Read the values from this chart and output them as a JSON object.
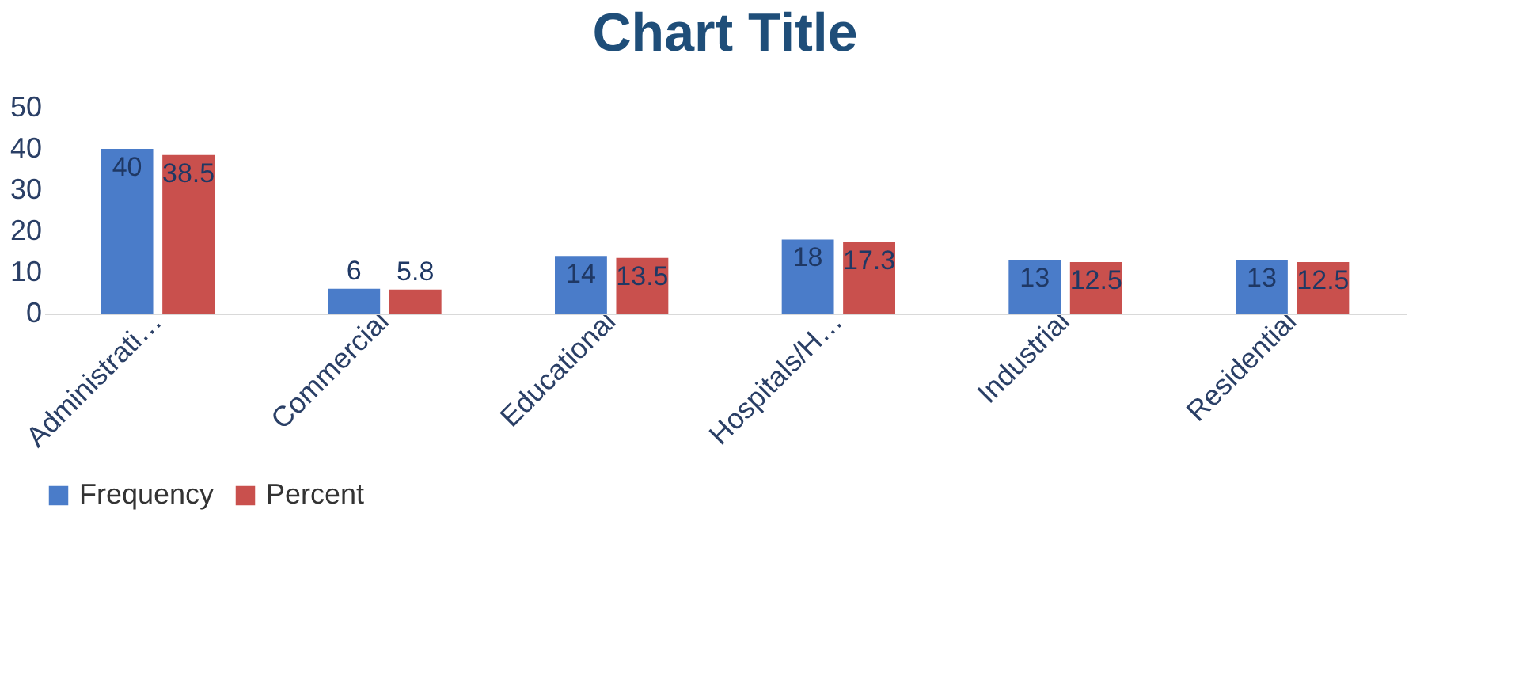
{
  "chart_data": {
    "type": "bar",
    "title": "Chart Title",
    "categories": [
      "Administrati…",
      "Commercial",
      "Educational",
      "Hospitals/H…",
      "Industrial",
      "Residential"
    ],
    "series": [
      {
        "name": "Frequency",
        "color": "#4a7cc9",
        "values": [
          40,
          6,
          14,
          18,
          13,
          13
        ]
      },
      {
        "name": "Percent",
        "color": "#c9504d",
        "values": [
          38.5,
          5.8,
          13.5,
          17.3,
          12.5,
          12.5
        ]
      }
    ],
    "ylim": [
      0,
      50
    ],
    "yticks": [
      0,
      10,
      20,
      30,
      40,
      50
    ],
    "grid": false,
    "legend": "bottom",
    "data_labels": true
  }
}
